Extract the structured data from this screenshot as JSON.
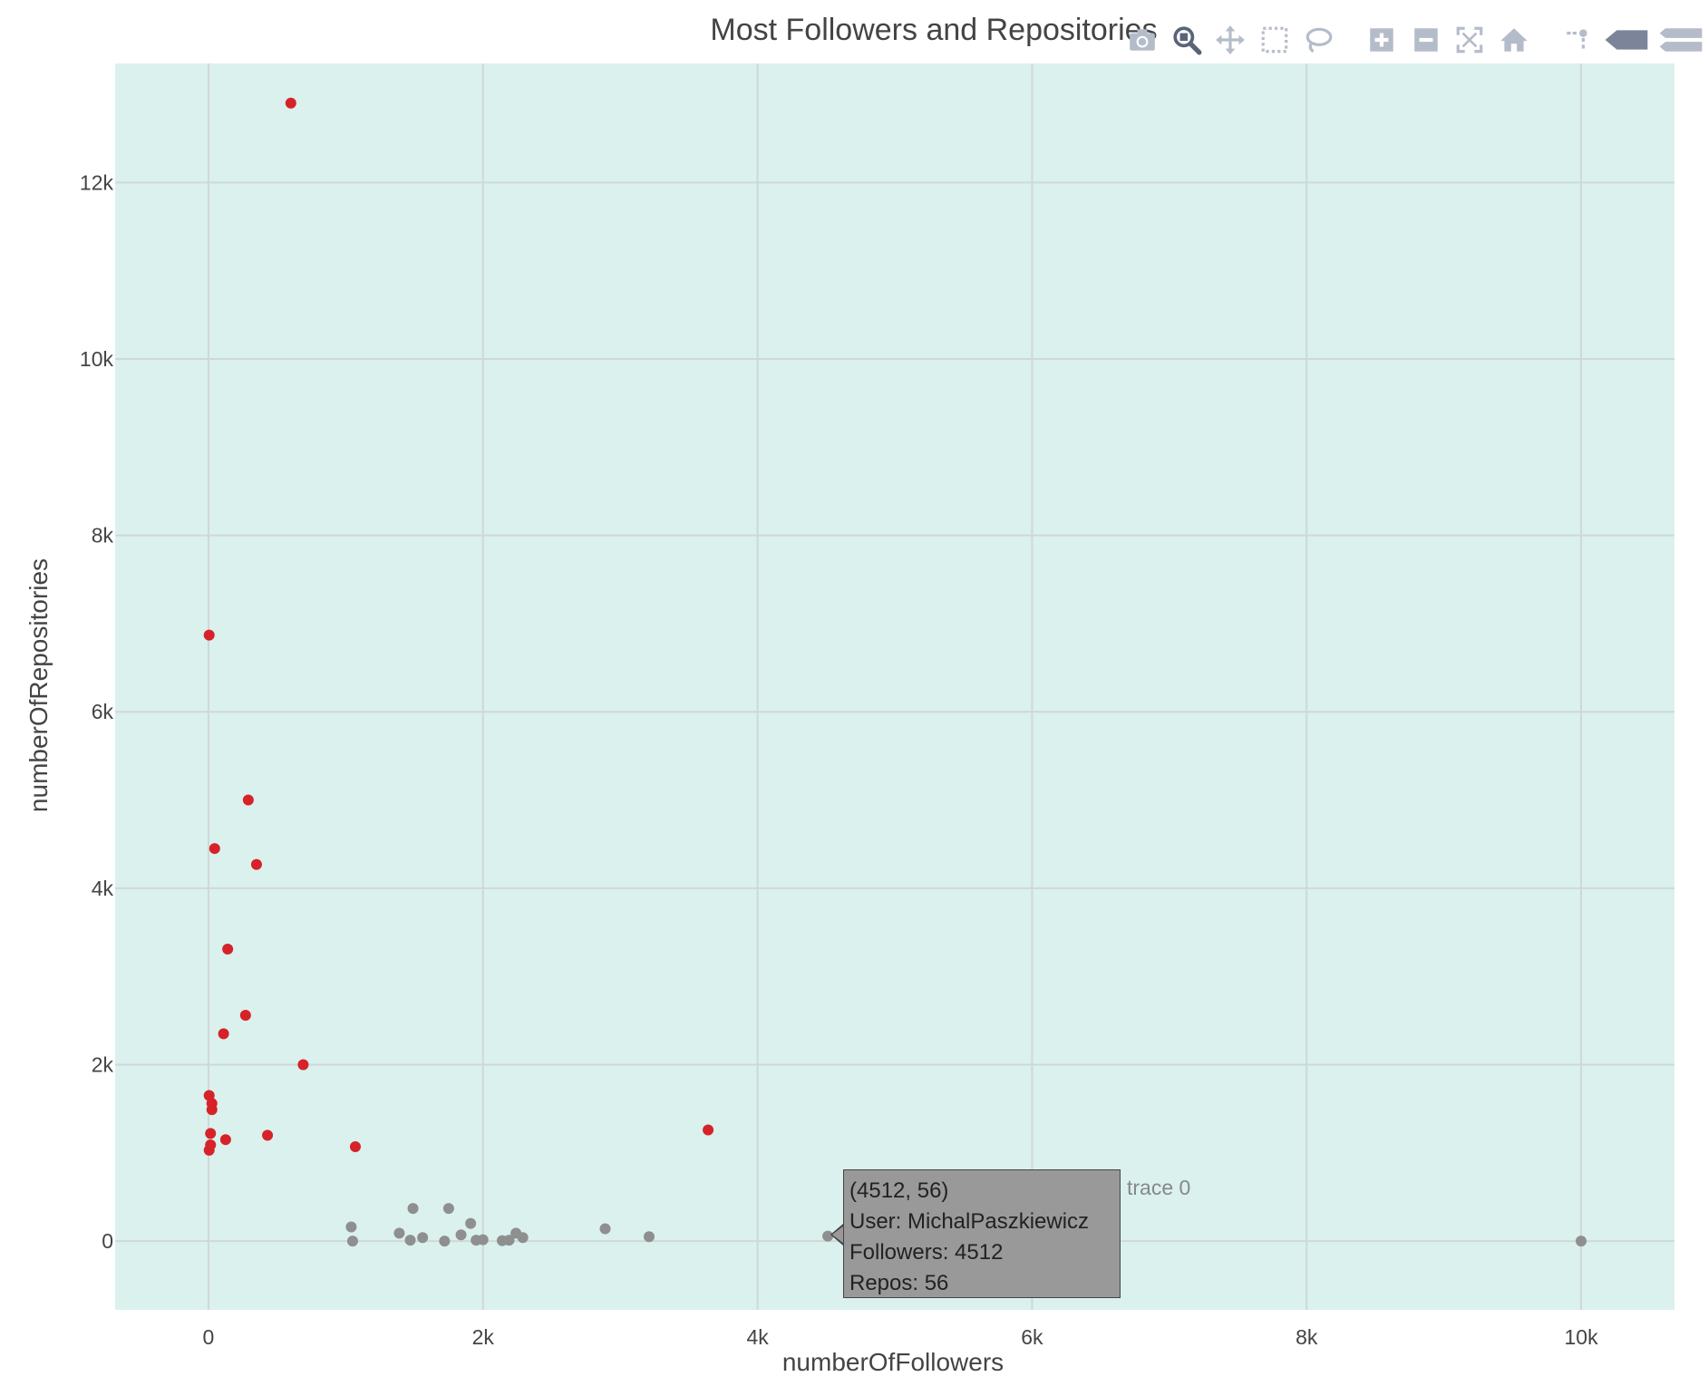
{
  "chart_data": {
    "type": "scatter",
    "title": "Most Followers and Repositories",
    "xlabel": "numberOfFollowers",
    "ylabel": "numberOfRepositories",
    "xlim": [
      -680,
      10680
    ],
    "ylim": [
      -780,
      13350
    ],
    "x_ticks": [
      0,
      2000,
      4000,
      6000,
      8000,
      10000
    ],
    "x_tick_labels": [
      "0",
      "2k",
      "4k",
      "6k",
      "8k",
      "10k"
    ],
    "y_ticks": [
      0,
      2000,
      4000,
      6000,
      8000,
      10000,
      12000
    ],
    "y_tick_labels": [
      "0",
      "2k",
      "4k",
      "6k",
      "8k",
      "10k",
      "12k"
    ],
    "grid": true,
    "plot_background": "#daf1ee",
    "series": [
      {
        "color": "#d62228",
        "points": [
          {
            "x": 600,
            "y": 12900
          },
          {
            "x": 5,
            "y": 6870
          },
          {
            "x": 290,
            "y": 5000
          },
          {
            "x": 45,
            "y": 4450
          },
          {
            "x": 350,
            "y": 4270
          },
          {
            "x": 140,
            "y": 3310
          },
          {
            "x": 270,
            "y": 2560
          },
          {
            "x": 110,
            "y": 2350
          },
          {
            "x": 690,
            "y": 2000
          },
          {
            "x": 5,
            "y": 1650
          },
          {
            "x": 25,
            "y": 1560
          },
          {
            "x": 25,
            "y": 1490
          },
          {
            "x": 15,
            "y": 1220
          },
          {
            "x": 430,
            "y": 1200
          },
          {
            "x": 125,
            "y": 1150
          },
          {
            "x": 15,
            "y": 1090
          },
          {
            "x": 1070,
            "y": 1070
          },
          {
            "x": 5,
            "y": 1030
          },
          {
            "x": 3640,
            "y": 1260
          }
        ]
      },
      {
        "name": "trace 0",
        "color": "#8f8f8f",
        "points": [
          {
            "x": 1040,
            "y": 160
          },
          {
            "x": 1050,
            "y": 0
          },
          {
            "x": 1390,
            "y": 90
          },
          {
            "x": 1470,
            "y": 10
          },
          {
            "x": 1490,
            "y": 370
          },
          {
            "x": 1560,
            "y": 40
          },
          {
            "x": 1720,
            "y": 0
          },
          {
            "x": 1750,
            "y": 370
          },
          {
            "x": 1840,
            "y": 70
          },
          {
            "x": 1910,
            "y": 200
          },
          {
            "x": 1950,
            "y": 10
          },
          {
            "x": 2000,
            "y": 15
          },
          {
            "x": 2140,
            "y": 5
          },
          {
            "x": 2190,
            "y": 10
          },
          {
            "x": 2240,
            "y": 90
          },
          {
            "x": 2290,
            "y": 40
          },
          {
            "x": 2890,
            "y": 140
          },
          {
            "x": 3210,
            "y": 50
          },
          {
            "x": 4512,
            "y": 56
          },
          {
            "x": 10000,
            "y": 0
          }
        ]
      }
    ],
    "hover": {
      "coords": "(4512, 56)",
      "user": "User: MichalPaszkiewicz",
      "followers": "Followers: 4512",
      "repos": "Repos: 56",
      "trace_name": "trace 0"
    }
  },
  "modebar": {
    "buttons": [
      "camera-icon",
      "zoom-icon",
      "pan-icon",
      "box-select-icon",
      "lasso-icon",
      "zoom-in-icon",
      "zoom-out-icon",
      "autoscale-icon",
      "reset-axes-icon",
      "spike-lines-icon",
      "hover-closest-icon",
      "hover-compare-icon"
    ],
    "active_color": "#5a6378",
    "inactive_color": "#b5bcc9"
  }
}
